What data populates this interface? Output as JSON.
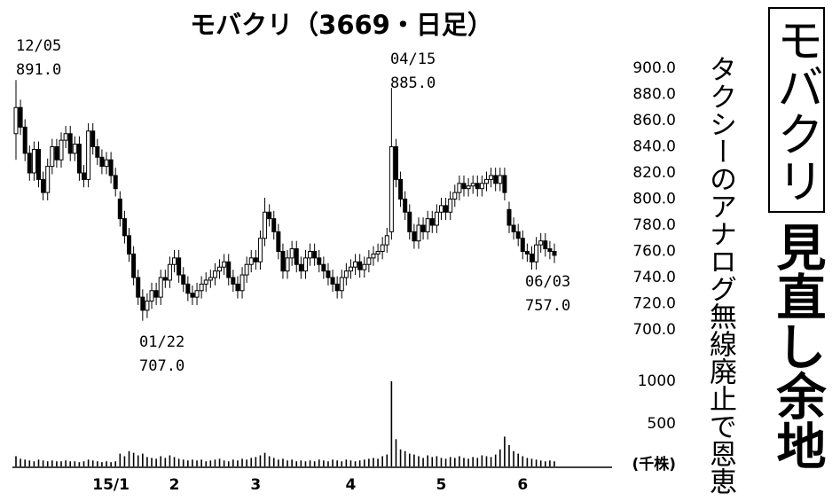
{
  "headline": {
    "title": "モバクリ",
    "subtitle": "見直し余地",
    "lead": "タクシーのアナログ無線廃止で恩恵"
  },
  "chart_data": {
    "type": "candlestick",
    "title": "モバクリ（3669・日足）",
    "categories": [
      null,
      null,
      null,
      null,
      null,
      null,
      null,
      null,
      null,
      null,
      null,
      null,
      null,
      null,
      null,
      null,
      null,
      null,
      null,
      null,
      null,
      "15/1",
      null,
      null,
      null,
      null,
      null,
      null,
      null,
      null,
      null,
      null,
      null,
      null,
      null,
      "2",
      null,
      null,
      null,
      null,
      null,
      null,
      null,
      null,
      null,
      null,
      null,
      null,
      null,
      null,
      null,
      null,
      null,
      "3",
      null,
      null,
      null,
      null,
      null,
      null,
      null,
      null,
      null,
      null,
      null,
      null,
      null,
      null,
      null,
      null,
      null,
      null,
      null,
      null,
      "4",
      null,
      null,
      null,
      null,
      null,
      null,
      null,
      null,
      null,
      null,
      null,
      null,
      null,
      null,
      null,
      null,
      null,
      null,
      null,
      "5",
      null,
      null,
      null,
      null,
      null,
      null,
      null,
      null,
      null,
      null,
      null,
      null,
      null,
      null,
      null,
      null,
      null,
      "6",
      null,
      null,
      null,
      null,
      null,
      null,
      null
    ],
    "open": [
      850,
      870,
      855,
      835,
      820,
      838,
      815,
      805,
      825,
      840,
      830,
      845,
      850,
      835,
      842,
      820,
      815,
      852,
      840,
      832,
      825,
      830,
      818,
      800,
      785,
      772,
      758,
      740,
      725,
      715,
      722,
      730,
      725,
      740,
      738,
      750,
      755,
      742,
      735,
      728,
      725,
      730,
      735,
      738,
      740,
      745,
      748,
      752,
      740,
      735,
      730,
      742,
      750,
      755,
      752,
      770,
      790,
      785,
      775,
      760,
      745,
      755,
      762,
      750,
      745,
      755,
      760,
      755,
      750,
      745,
      740,
      735,
      730,
      740,
      745,
      748,
      752,
      746,
      750,
      755,
      758,
      760,
      765,
      775,
      840,
      815,
      800,
      790,
      775,
      768,
      780,
      775,
      785,
      780,
      790,
      795,
      790,
      800,
      805,
      812,
      808,
      810,
      812,
      808,
      812,
      815,
      818,
      812,
      818,
      792,
      780,
      775,
      770,
      760,
      758,
      752,
      765,
      768,
      762,
      760
    ],
    "high": [
      891,
      876,
      861,
      841,
      844,
      844,
      821,
      831,
      846,
      846,
      851,
      856,
      856,
      848,
      848,
      826,
      858,
      858,
      846,
      838,
      836,
      836,
      824,
      806,
      791,
      778,
      764,
      746,
      731,
      728,
      736,
      736,
      746,
      746,
      756,
      761,
      761,
      748,
      741,
      734,
      736,
      741,
      744,
      746,
      751,
      754,
      758,
      758,
      746,
      741,
      748,
      756,
      761,
      761,
      776,
      801,
      796,
      791,
      781,
      766,
      761,
      768,
      768,
      756,
      761,
      766,
      766,
      761,
      756,
      751,
      746,
      741,
      746,
      751,
      754,
      758,
      758,
      756,
      761,
      764,
      766,
      771,
      778,
      885,
      846,
      821,
      806,
      796,
      781,
      786,
      786,
      791,
      791,
      796,
      801,
      801,
      806,
      811,
      818,
      818,
      816,
      818,
      818,
      818,
      821,
      824,
      824,
      824,
      824,
      798,
      786,
      781,
      776,
      766,
      764,
      771,
      774,
      774,
      768,
      766
    ],
    "low": [
      830,
      849,
      829,
      814,
      814,
      809,
      799,
      799,
      819,
      824,
      824,
      839,
      829,
      829,
      814,
      809,
      809,
      834,
      826,
      819,
      819,
      812,
      802,
      779,
      766,
      752,
      734,
      719,
      707,
      709,
      716,
      719,
      719,
      732,
      732,
      744,
      736,
      729,
      722,
      719,
      719,
      724,
      729,
      732,
      734,
      739,
      742,
      734,
      729,
      724,
      724,
      736,
      744,
      746,
      746,
      764,
      779,
      769,
      754,
      739,
      739,
      749,
      744,
      739,
      739,
      749,
      749,
      744,
      739,
      734,
      729,
      724,
      724,
      734,
      739,
      742,
      740,
      740,
      744,
      749,
      752,
      754,
      759,
      769,
      809,
      794,
      784,
      769,
      762,
      762,
      769,
      769,
      774,
      774,
      784,
      784,
      784,
      794,
      799,
      802,
      802,
      804,
      802,
      802,
      806,
      809,
      806,
      806,
      799,
      774,
      769,
      764,
      754,
      752,
      746,
      746,
      759,
      756,
      754,
      751
    ],
    "close": [
      870,
      855,
      835,
      820,
      838,
      815,
      805,
      825,
      840,
      830,
      845,
      850,
      835,
      842,
      820,
      815,
      852,
      840,
      832,
      825,
      830,
      818,
      808,
      785,
      772,
      758,
      740,
      725,
      715,
      722,
      730,
      725,
      740,
      738,
      750,
      755,
      742,
      735,
      728,
      725,
      730,
      735,
      738,
      740,
      745,
      748,
      752,
      740,
      735,
      730,
      742,
      750,
      755,
      752,
      770,
      790,
      785,
      775,
      760,
      745,
      755,
      762,
      750,
      745,
      755,
      760,
      755,
      750,
      745,
      740,
      735,
      730,
      740,
      745,
      748,
      752,
      746,
      750,
      755,
      758,
      760,
      765,
      772,
      840,
      815,
      800,
      790,
      775,
      768,
      780,
      775,
      785,
      780,
      790,
      795,
      790,
      800,
      805,
      812,
      808,
      810,
      812,
      808,
      812,
      815,
      818,
      812,
      818,
      805,
      780,
      775,
      770,
      760,
      758,
      752,
      765,
      768,
      762,
      760,
      757
    ],
    "volume": [
      120,
      90,
      80,
      70,
      60,
      80,
      70,
      60,
      70,
      60,
      60,
      70,
      60,
      60,
      50,
      60,
      80,
      70,
      60,
      50,
      60,
      50,
      60,
      150,
      120,
      180,
      160,
      130,
      150,
      110,
      100,
      90,
      120,
      100,
      130,
      110,
      90,
      80,
      70,
      80,
      70,
      80,
      60,
      70,
      80,
      90,
      70,
      60,
      80,
      70,
      90,
      80,
      100,
      110,
      130,
      160,
      120,
      100,
      80,
      90,
      70,
      80,
      60,
      70,
      60,
      70,
      60,
      80,
      70,
      60,
      80,
      70,
      60,
      80,
      70,
      60,
      70,
      80,
      90,
      100,
      90,
      120,
      140,
      1000,
      320,
      200,
      180,
      150,
      140,
      120,
      100,
      130,
      110,
      120,
      100,
      90,
      110,
      100,
      120,
      100,
      90,
      110,
      100,
      130,
      120,
      110,
      140,
      200,
      350,
      250,
      180,
      150,
      120,
      100,
      90,
      80,
      70,
      60,
      70,
      60
    ],
    "ylim": [
      700,
      900
    ],
    "yticks": [
      {
        "value": 700,
        "label": "700.0"
      },
      {
        "value": 720,
        "label": "720.0"
      },
      {
        "value": 740,
        "label": "740.0"
      },
      {
        "value": 760,
        "label": "760.0"
      },
      {
        "value": 780,
        "label": "780.0"
      },
      {
        "value": 800,
        "label": "800.0"
      },
      {
        "value": 820,
        "label": "820.0"
      },
      {
        "value": 840,
        "label": "840.0"
      },
      {
        "value": 860,
        "label": "860.0"
      },
      {
        "value": 880,
        "label": "880.0"
      },
      {
        "value": 900,
        "label": "900.0"
      }
    ],
    "volume_ylim": [
      0,
      1000
    ],
    "volume_yticks": [
      500,
      1000
    ],
    "volume_label": "(千株)",
    "annotations": [
      {
        "date": "12/05",
        "value": "891.0"
      },
      {
        "date": "04/15",
        "value": "885.0"
      },
      {
        "date": "01/22",
        "value": "707.0"
      },
      {
        "date": "06/03",
        "value": "757.0"
      }
    ]
  }
}
